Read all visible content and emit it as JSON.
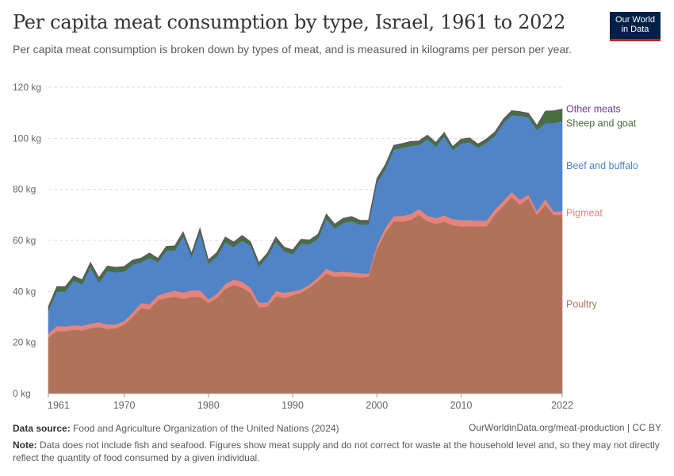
{
  "title": "Per capita meat consumption by type, Israel, 1961 to 2022",
  "subtitle": "Per capita meat consumption is broken down by types of meat, and is measured in kilograms per person per year.",
  "logo": {
    "line1": "Our World",
    "line2": "in Data"
  },
  "footer": {
    "source_label": "Data source:",
    "source_text": "Food and Agriculture Organization of the United Nations (2024)",
    "url": "OurWorldinData.org/meat-production | CC BY",
    "note_label": "Note:",
    "note_text": "Data does not include fish and seafood. Figures show meat supply and do not correct for waste at the household level and, so they may not directly reflect the quantity of food consumed by a given individual."
  },
  "chart_data": {
    "type": "area",
    "stacked": true,
    "x": [
      1961,
      1962,
      1963,
      1964,
      1965,
      1966,
      1967,
      1968,
      1969,
      1970,
      1971,
      1972,
      1973,
      1974,
      1975,
      1976,
      1977,
      1978,
      1979,
      1980,
      1981,
      1982,
      1983,
      1984,
      1985,
      1986,
      1987,
      1988,
      1989,
      1990,
      1991,
      1992,
      1993,
      1994,
      1995,
      1996,
      1997,
      1998,
      1999,
      2000,
      2001,
      2002,
      2003,
      2004,
      2005,
      2006,
      2007,
      2008,
      2009,
      2010,
      2011,
      2012,
      2013,
      2014,
      2015,
      2016,
      2017,
      2018,
      2019,
      2020,
      2021,
      2022
    ],
    "x_ticks": [
      "1961",
      "1970",
      "1980",
      "1990",
      "2000",
      "2010",
      "2022"
    ],
    "y_ticks": [
      "0 kg",
      "20 kg",
      "40 kg",
      "60 kg",
      "80 kg",
      "100 kg",
      "120 kg"
    ],
    "ylim": [
      0,
      120
    ],
    "grid": "horizontal",
    "legend": "labels at right end of series",
    "series": [
      {
        "name": "Poultry",
        "color": "#b0725a",
        "values": [
          22,
          24.5,
          24.3,
          25,
          24.7,
          25.6,
          26.1,
          25.3,
          25.5,
          27,
          30,
          33.5,
          33,
          36.5,
          37.5,
          37.9,
          37.1,
          37.9,
          37.9,
          35.5,
          37.4,
          41,
          42.5,
          41.5,
          39.5,
          33.8,
          34.1,
          38,
          37.5,
          38.5,
          39.5,
          41.5,
          44,
          47,
          45.8,
          46,
          45.8,
          45.5,
          45.8,
          56.5,
          63,
          67.5,
          67.3,
          68,
          70,
          67.5,
          66.5,
          67.3,
          66,
          65.5,
          65.6,
          65.5,
          65.5,
          70,
          73.5,
          77,
          74,
          76.5,
          70,
          74,
          70,
          70
        ]
      },
      {
        "name": "Pigmeat",
        "color": "#e5847c",
        "values": [
          1.5,
          2,
          2,
          1.8,
          1.8,
          1.8,
          1.9,
          1.8,
          1.6,
          1.5,
          1.8,
          2,
          2,
          2,
          2,
          2.5,
          2.5,
          2.6,
          2.6,
          1.5,
          1.7,
          1.9,
          2.2,
          2.4,
          2,
          1.8,
          1.6,
          2.2,
          2,
          1.6,
          1.3,
          1.3,
          1.5,
          2,
          1.7,
          1.8,
          1.7,
          1.7,
          1.2,
          1.5,
          2,
          2,
          2.3,
          2.3,
          2.4,
          2.2,
          2.3,
          2.5,
          2.4,
          2.5,
          2.4,
          2.3,
          2.3,
          2.1,
          2,
          2,
          2,
          1.5,
          1.6,
          2.2,
          1.3,
          1.5
        ]
      },
      {
        "name": "Beef and buffalo",
        "color": "#5184c6",
        "values": [
          9,
          13.5,
          13.7,
          17.5,
          16.3,
          22.1,
          15.5,
          20.9,
          20.4,
          19.3,
          18.7,
          15.9,
          18.2,
          13,
          16.5,
          15.6,
          22,
          13,
          22.5,
          14,
          14.6,
          16.5,
          12.8,
          16.1,
          16.5,
          14.2,
          18,
          19.3,
          16.3,
          14.6,
          17.9,
          15.7,
          15.2,
          19.5,
          17.2,
          19.1,
          20.1,
          19,
          19.2,
          24.5,
          23,
          26,
          26.7,
          26.8,
          25,
          30,
          28,
          31,
          27,
          30,
          30.5,
          28.6,
          30.5,
          28.9,
          30.5,
          30.2,
          32.8,
          30.3,
          31.7,
          29.8,
          34.7,
          35.3
        ]
      },
      {
        "name": "Sheep and goat",
        "color": "#4a6e3f",
        "values": [
          1.5,
          1.8,
          1.8,
          1.7,
          1.7,
          1.8,
          1.9,
          1.9,
          1.9,
          1.9,
          1.7,
          1.6,
          1.8,
          1.4,
          1.6,
          1.8,
          1.7,
          1.4,
          1.8,
          1.3,
          1.5,
          1.9,
          1.8,
          1.9,
          1.4,
          1.4,
          1.3,
          1.8,
          1.5,
          1.5,
          1.7,
          1.6,
          1.6,
          1.8,
          1.6,
          1.7,
          1.7,
          1.6,
          1.6,
          1.7,
          1.6,
          1.7,
          1.6,
          1.6,
          1.5,
          1.5,
          1.5,
          1.5,
          1.3,
          1.6,
          1.6,
          1.3,
          1.4,
          1.4,
          1.4,
          1.6,
          1.6,
          1.5,
          1.7,
          4.6,
          4.7,
          4.6
        ]
      },
      {
        "name": "Other meats",
        "color": "#6d3e91",
        "values": [
          0.1,
          0.1,
          0.1,
          0.1,
          0.1,
          0.1,
          0.1,
          0.1,
          0.1,
          0.1,
          0.1,
          0.1,
          0.1,
          0.1,
          0.1,
          0.1,
          0.1,
          0.1,
          0.1,
          0.1,
          0.1,
          0.1,
          0.1,
          0.1,
          0.1,
          0.1,
          0.1,
          0.1,
          0.1,
          0.1,
          0.1,
          0.1,
          0.1,
          0.1,
          0.1,
          0.1,
          0.1,
          0.1,
          0.1,
          0.1,
          0.1,
          0.1,
          0.1,
          0.1,
          0.1,
          0.1,
          0.1,
          0.1,
          0.1,
          0.1,
          0.1,
          0.1,
          0.1,
          0.1,
          0.1,
          0.1,
          0.1,
          0.1,
          0.1,
          0.1,
          0.1,
          0.1
        ]
      }
    ]
  }
}
